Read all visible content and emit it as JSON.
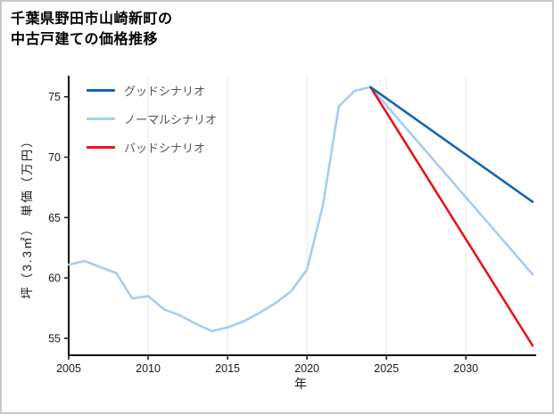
{
  "title": {
    "line1": "千葉県野田市山崎新町の",
    "line2": "中古戸建ての価格推移"
  },
  "chart_data": {
    "type": "line",
    "title": "千葉県野田市山崎新町の中古戸建ての価格推移",
    "xlabel": "年",
    "ylabel": "坪（3.3㎡） 単価（万円）",
    "xlim": [
      2005,
      2034.2
    ],
    "ylim": [
      53.6,
      76.6
    ],
    "xticks": [
      2005,
      2010,
      2015,
      2020,
      2025,
      2030
    ],
    "yticks": [
      55,
      60,
      65,
      70,
      75
    ],
    "grid": "vertical-light",
    "legend_position": "top-left",
    "series": [
      {
        "id": "good-scenario",
        "name": "グッドシナリオ",
        "color": "#1565b3",
        "x": [
          2024,
          2034.2
        ],
        "values": [
          75.8,
          66.3
        ]
      },
      {
        "id": "normal-scenario",
        "name": "ノーマルシナリオ",
        "color": "#a7cdf0",
        "x": [
          2005,
          2006,
          2007,
          2008,
          2009,
          2010,
          2011,
          2012,
          2013,
          2014,
          2015,
          2016,
          2017,
          2018,
          2019,
          2020,
          2021,
          2022,
          2023,
          2024,
          2034.2
        ],
        "values": [
          61.1,
          61.4,
          60.9,
          60.4,
          58.3,
          58.5,
          57.4,
          56.9,
          56.2,
          55.6,
          55.9,
          56.4,
          57.1,
          57.9,
          58.9,
          60.7,
          66.0,
          74.2,
          75.5,
          75.8,
          60.3
        ]
      },
      {
        "id": "bad-scenario",
        "name": "バッドシナリオ",
        "color": "#e8161c",
        "x": [
          2024,
          2034.2
        ],
        "values": [
          75.8,
          54.4
        ]
      }
    ]
  }
}
